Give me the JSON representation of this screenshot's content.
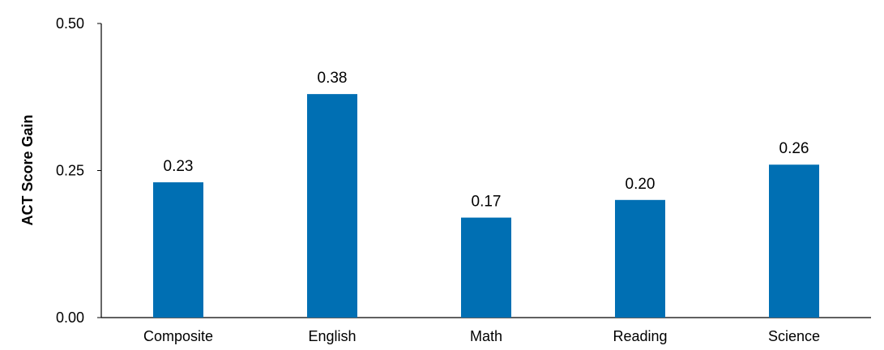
{
  "chart_data": {
    "type": "bar",
    "title": "",
    "xlabel": "",
    "ylabel": "ACT Score Gain",
    "categories": [
      "Composite",
      "English",
      "Math",
      "Reading",
      "Science"
    ],
    "values": [
      0.23,
      0.38,
      0.17,
      0.2,
      0.26
    ],
    "value_labels": [
      "0.23",
      "0.38",
      "0.17",
      "0.20",
      "0.26"
    ],
    "ylim": [
      0,
      0.5
    ],
    "yticks": [
      0.0,
      0.25,
      0.5
    ],
    "ytick_labels": [
      "0.00",
      "0.25",
      "0.50"
    ],
    "grid": false,
    "legend": "none",
    "bar_color": "#006FB3"
  }
}
